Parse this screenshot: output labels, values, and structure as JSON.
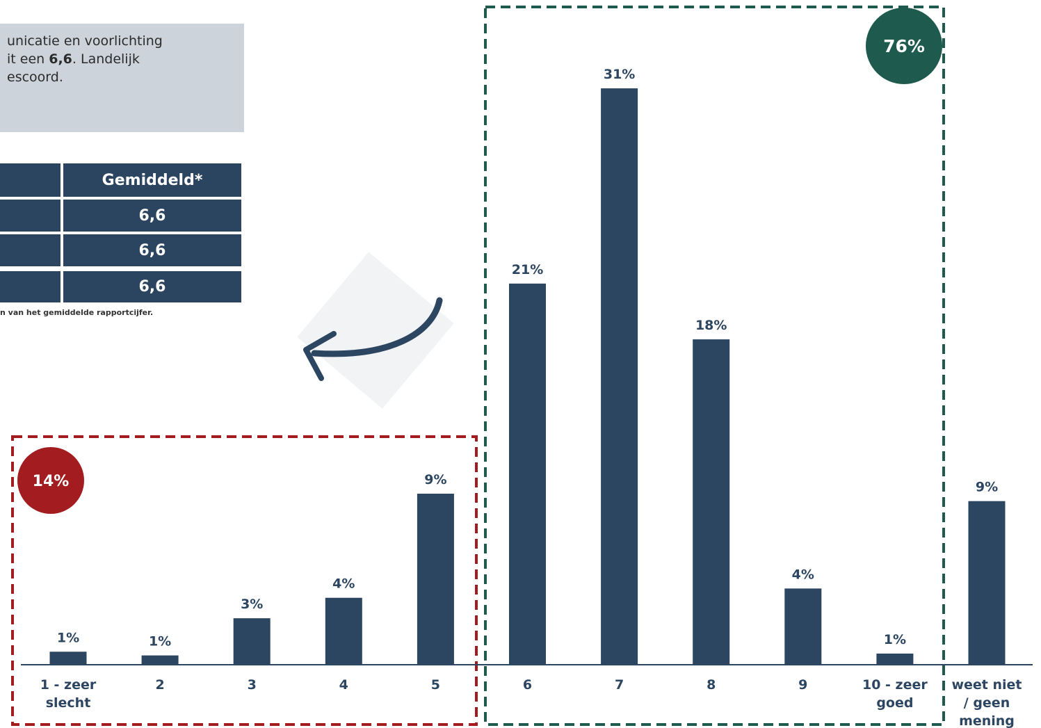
{
  "text_box": {
    "lines": [
      [
        "unicatie en voorlichting"
      ],
      [
        "it een ",
        "6,6",
        ". Landelijk"
      ],
      [
        "escoord."
      ]
    ]
  },
  "table": {
    "header": "Gemiddeld*",
    "rows": [
      "6,6",
      "6,6",
      "6,6"
    ],
    "footnote": "n van het gemiddelde rapportcijfer."
  },
  "chart_data": {
    "type": "bar",
    "color": "#2c4560",
    "categories": [
      "1 - zeer slecht",
      "2",
      "3",
      "4",
      "5",
      "6",
      "7",
      "8",
      "9",
      "10 - zeer goed",
      "weet niet / geen mening"
    ],
    "values": [
      0.7,
      0.5,
      2.5,
      3.6,
      9.2,
      20.5,
      31.0,
      17.5,
      4.1,
      0.6,
      8.8
    ],
    "value_labels": [
      "1%",
      "1%",
      "3%",
      "4%",
      "9%",
      "21%",
      "31%",
      "18%",
      "4%",
      "1%",
      "9%"
    ],
    "annotations": [
      {
        "text": "14%",
        "color": "#a31c1f"
      },
      {
        "text": "76%",
        "color": "#1f5a4e"
      }
    ]
  }
}
